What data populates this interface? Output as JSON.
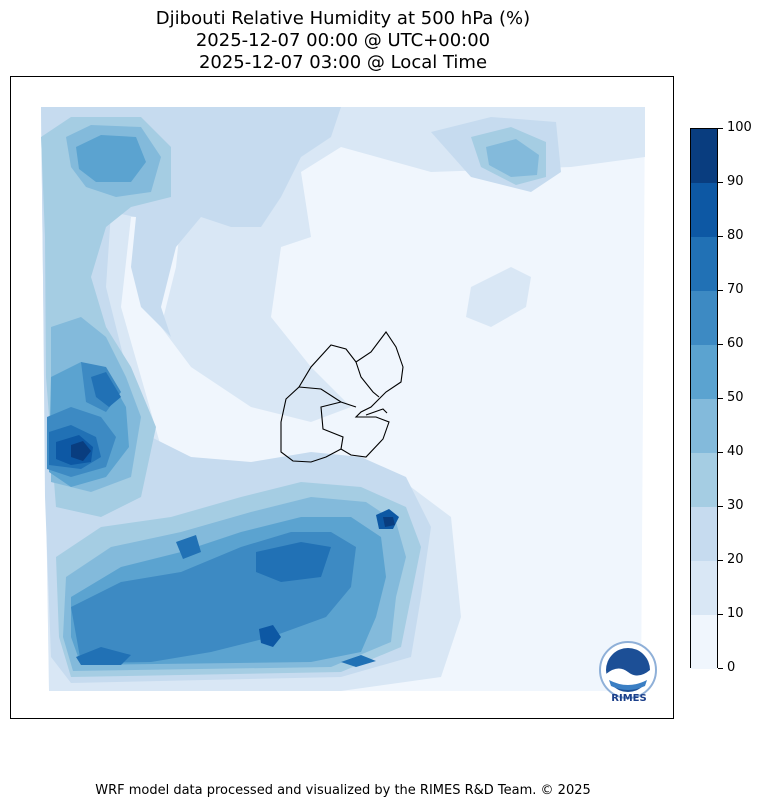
{
  "title": {
    "line1": "Djibouti Relative Humidity at 500 hPa (%)",
    "line2": "2025-12-07 00:00 @ UTC+00:00",
    "line3": "2025-12-07 03:00 @ Local Time"
  },
  "colorbar": {
    "ticks": [
      "0",
      "10",
      "20",
      "30",
      "40",
      "50",
      "60",
      "70",
      "80",
      "90",
      "100"
    ],
    "colors": [
      "#f0f6fd",
      "#d9e7f5",
      "#c6dbef",
      "#a5cde3",
      "#83badb",
      "#5ba3d0",
      "#3d8ac3",
      "#2171b5",
      "#0d58a4",
      "#093d7f"
    ]
  },
  "logo": {
    "text": "RIMES"
  },
  "footer": "WRF model data processed and visualized by the RIMES R&D Team. © 2025"
}
